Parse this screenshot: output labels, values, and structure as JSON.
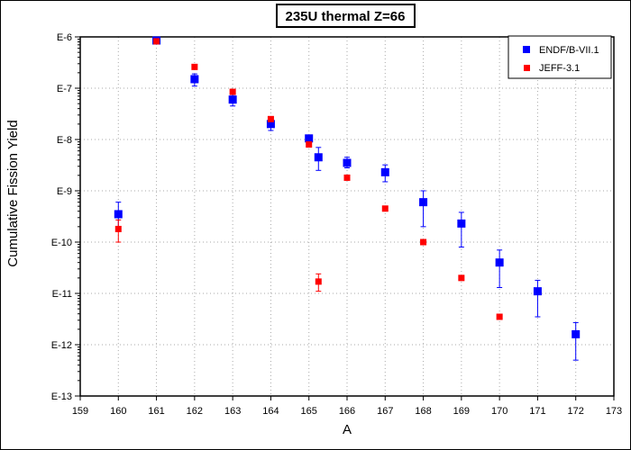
{
  "chart_data": {
    "type": "scatter",
    "title": "235U thermal Z=66",
    "xlabel": "A",
    "ylabel": "Cumulative Fission Yield",
    "xlim": [
      159,
      173
    ],
    "x_ticks": [
      159,
      160,
      161,
      162,
      163,
      164,
      165,
      166,
      167,
      168,
      169,
      170,
      171,
      172,
      173
    ],
    "y_scale": "log",
    "ylim": [
      1e-13,
      1e-06
    ],
    "y_ticks": [
      {
        "value": 1e-06,
        "label": "E-6"
      },
      {
        "value": 1e-07,
        "label": "E-7"
      },
      {
        "value": 1e-08,
        "label": "E-8"
      },
      {
        "value": 1e-09,
        "label": "E-9"
      },
      {
        "value": 1e-10,
        "label": "E-10"
      },
      {
        "value": 1e-11,
        "label": "E-11"
      },
      {
        "value": 1e-12,
        "label": "E-12"
      },
      {
        "value": 1e-13,
        "label": "E-13"
      }
    ],
    "grid": true,
    "legend_position": "top-right",
    "series": [
      {
        "name": "ENDF/B-VII.1",
        "color": "#0000ff",
        "marker": "square",
        "points": [
          {
            "x": 160,
            "y": 3.5e-10,
            "err_low": 2e-10,
            "err_high": 6e-10
          },
          {
            "x": 161,
            "y": 8.5e-07
          },
          {
            "x": 162,
            "y": 1.5e-07,
            "err_low": 1.1e-07,
            "err_high": 1.9e-07
          },
          {
            "x": 163,
            "y": 6e-08,
            "err_low": 4.5e-08,
            "err_high": 7.5e-08
          },
          {
            "x": 164,
            "y": 2e-08,
            "err_low": 1.5e-08,
            "err_high": 2.5e-08
          },
          {
            "x": 165,
            "y": 1.05e-08,
            "err_low": 9e-09,
            "err_high": 1.2e-08
          },
          {
            "x": 165.25,
            "y": 4.5e-09,
            "err_low": 2.5e-09,
            "err_high": 7e-09
          },
          {
            "x": 166,
            "y": 3.5e-09,
            "err_low": 2.8e-09,
            "err_high": 4.5e-09
          },
          {
            "x": 167,
            "y": 2.3e-09,
            "err_low": 1.5e-09,
            "err_high": 3.2e-09
          },
          {
            "x": 168,
            "y": 6e-10,
            "err_low": 2e-10,
            "err_high": 1e-09
          },
          {
            "x": 169,
            "y": 2.3e-10,
            "err_low": 8e-11,
            "err_high": 3.8e-10
          },
          {
            "x": 170,
            "y": 4e-11,
            "err_low": 1.3e-11,
            "err_high": 7e-11
          },
          {
            "x": 171,
            "y": 1.1e-11,
            "err_low": 3.5e-12,
            "err_high": 1.8e-11
          },
          {
            "x": 172,
            "y": 1.6e-12,
            "err_low": 5e-13,
            "err_high": 2.7e-12
          }
        ]
      },
      {
        "name": "JEFF-3.1",
        "color": "#ff0000",
        "marker": "square",
        "points": [
          {
            "x": 160,
            "y": 1.8e-10,
            "err_low": 1e-10,
            "err_high": 2.7e-10
          },
          {
            "x": 161,
            "y": 8.2e-07
          },
          {
            "x": 162,
            "y": 2.6e-07
          },
          {
            "x": 163,
            "y": 8.5e-08
          },
          {
            "x": 164,
            "y": 2.5e-08
          },
          {
            "x": 165,
            "y": 8e-09
          },
          {
            "x": 165.25,
            "y": 1.7e-11,
            "err_low": 1.1e-11,
            "err_high": 2.4e-11
          },
          {
            "x": 166,
            "y": 1.8e-09
          },
          {
            "x": 167,
            "y": 4.5e-10
          },
          {
            "x": 168,
            "y": 1e-10
          },
          {
            "x": 169,
            "y": 2e-11
          },
          {
            "x": 170,
            "y": 3.5e-12
          }
        ]
      }
    ]
  }
}
